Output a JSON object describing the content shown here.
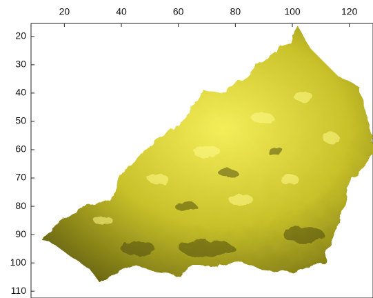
{
  "chart_data": {
    "type": "image",
    "xlim": [
      8.3,
      128.3
    ],
    "ylim": [
      15.4,
      112.4
    ],
    "xticks": [
      20,
      40,
      60,
      80,
      100,
      120
    ],
    "yticks": [
      20,
      30,
      40,
      50,
      60,
      70,
      80,
      90,
      100,
      110
    ]
  }
}
